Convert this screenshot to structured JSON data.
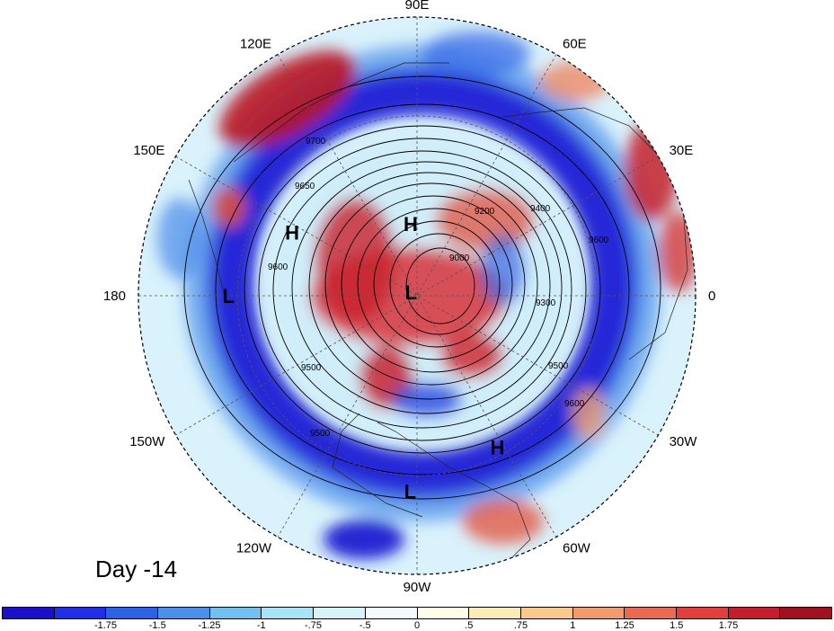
{
  "map": {
    "projection": "north-polar-stereographic",
    "longitude_labels": [
      {
        "text": "90E",
        "lon_deg": 90
      },
      {
        "text": "60E",
        "lon_deg": 60
      },
      {
        "text": "30E",
        "lon_deg": 30
      },
      {
        "text": "0",
        "lon_deg": 0
      },
      {
        "text": "30W",
        "lon_deg": -30
      },
      {
        "text": "60W",
        "lon_deg": -60
      },
      {
        "text": "90W",
        "lon_deg": -90
      },
      {
        "text": "120W",
        "lon_deg": -120
      },
      {
        "text": "150W",
        "lon_deg": -150
      },
      {
        "text": "180",
        "lon_deg": 180
      },
      {
        "text": "150E",
        "lon_deg": 150
      },
      {
        "text": "120E",
        "lon_deg": 120
      }
    ],
    "pressure_centers": [
      {
        "letter": "H",
        "lat_deg": 60,
        "lon_deg": 95
      },
      {
        "letter": "H",
        "lat_deg": 35,
        "lon_deg": 153
      },
      {
        "letter": "L",
        "lat_deg": 20,
        "lon_deg": 180
      },
      {
        "letter": "L",
        "lat_deg": 87,
        "lon_deg": 150
      },
      {
        "letter": "H",
        "lat_deg": 25,
        "lon_deg": -62
      },
      {
        "letter": "L",
        "lat_deg": 18,
        "lon_deg": -92
      }
    ],
    "contour_labels": [
      "9700",
      "9650",
      "9600",
      "9500",
      "9400",
      "9200",
      "9000",
      "9300",
      "9500",
      "9600",
      "9600",
      "9500"
    ],
    "colors": {
      "strong_negative": "#1010d8",
      "negative": "#4a86e8",
      "weak_negative": "#cdeefa",
      "weak_positive": "#fce8b0",
      "positive": "#ee6a50",
      "strong_positive": "#a00e20"
    }
  },
  "day_label": "Day -14",
  "colorbar": {
    "colors": [
      "#1a0fcb",
      "#1f2ee8",
      "#2b63e8",
      "#4a90ec",
      "#72c0f0",
      "#a8e4f7",
      "#d6f3fb",
      "#f3fbfe",
      "#fffde8",
      "#fdebb5",
      "#f8c98a",
      "#f29c6e",
      "#ec6a52",
      "#e23e3c",
      "#c41d2c",
      "#a0101e"
    ],
    "labels": [
      "-1.75",
      "-1.5",
      "-1.25",
      "-1",
      "-.75",
      "-.5",
      "0",
      ".5",
      ".75",
      "1",
      "1.25",
      "1.5",
      "1.75"
    ]
  }
}
